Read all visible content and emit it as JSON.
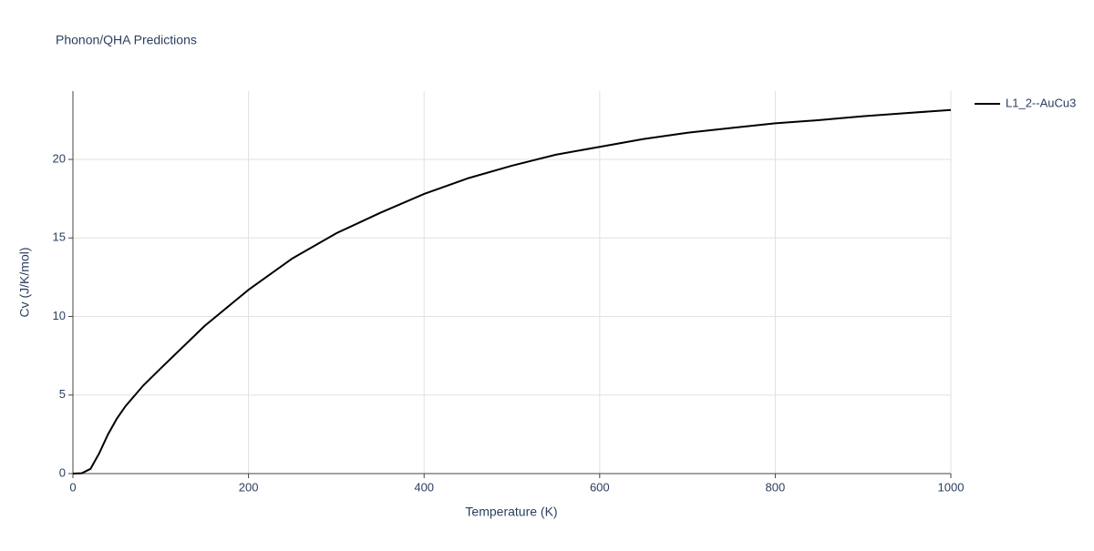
{
  "chart_data": {
    "type": "line",
    "title": "Phonon/QHA Predictions",
    "x_label": "Temperature (K)",
    "y_label": "Cv (J/K/mol)",
    "x": [
      0,
      10,
      20,
      30,
      40,
      50,
      60,
      80,
      100,
      150,
      200,
      250,
      300,
      350,
      400,
      450,
      500,
      550,
      600,
      650,
      700,
      750,
      800,
      850,
      900,
      950,
      1000
    ],
    "series": [
      {
        "name": "L1_2--AuCu3",
        "color": "#000000",
        "values": [
          0,
          0.02,
          0.3,
          1.3,
          2.5,
          3.5,
          4.3,
          5.6,
          6.7,
          9.4,
          11.7,
          13.7,
          15.3,
          16.6,
          17.8,
          18.8,
          19.6,
          20.3,
          20.8,
          21.3,
          21.7,
          22.0,
          22.3,
          22.5,
          22.75,
          22.95,
          23.15
        ]
      }
    ],
    "xlim": [
      0,
      1000
    ],
    "xticks": [
      0,
      200,
      400,
      600,
      800,
      1000
    ],
    "ylim": [
      0,
      24.35
    ],
    "yticks": [
      0,
      5,
      10,
      15,
      20
    ],
    "grid": true,
    "legend": "right"
  }
}
